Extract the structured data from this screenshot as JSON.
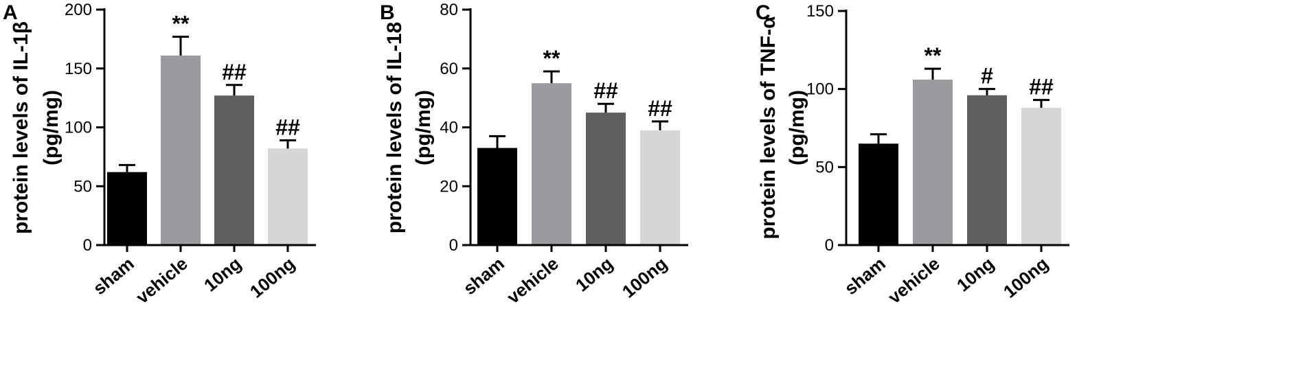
{
  "chart_data": [
    {
      "type": "bar",
      "panel": "A",
      "ylabel_lines": [
        "protein levels of IL-1β",
        "(pg/mg)"
      ],
      "categories": [
        "sham",
        "vehicle",
        "10ng",
        "100ng"
      ],
      "values": [
        62,
        161,
        127,
        82
      ],
      "errors": [
        6,
        16,
        9,
        7
      ],
      "annotations": [
        "",
        "**",
        "##",
        "##"
      ],
      "colors": [
        "#000000",
        "#9b9b9f",
        "#5e5f5f",
        "#d6d6d6"
      ],
      "ylim": [
        0,
        200
      ],
      "yticks": [
        0,
        50,
        100,
        150,
        200
      ]
    },
    {
      "type": "bar",
      "panel": "B",
      "ylabel_lines": [
        "protein levels of IL-18",
        "(pg/mg)"
      ],
      "categories": [
        "sham",
        "vehicle",
        "10ng",
        "100ng"
      ],
      "values": [
        33,
        55,
        45,
        39
      ],
      "errors": [
        4,
        4,
        3,
        3
      ],
      "annotations": [
        "",
        "**",
        "##",
        "##"
      ],
      "colors": [
        "#000000",
        "#9b9b9f",
        "#5e5f5f",
        "#d6d6d6"
      ],
      "ylim": [
        0,
        80
      ],
      "yticks": [
        0,
        20,
        40,
        60,
        80
      ]
    },
    {
      "type": "bar",
      "panel": "C",
      "ylabel_lines": [
        "protein levels of TNF-α",
        "(pg/mg)"
      ],
      "categories": [
        "sham",
        "vehicle",
        "10ng",
        "100ng"
      ],
      "values": [
        65,
        106,
        96,
        88
      ],
      "errors": [
        6,
        7,
        4,
        5
      ],
      "annotations": [
        "",
        "**",
        "#",
        "##"
      ],
      "colors": [
        "#000000",
        "#9b9b9f",
        "#5e5f5f",
        "#d6d6d6"
      ],
      "ylim": [
        0,
        150
      ],
      "yticks": [
        0,
        50,
        100,
        150
      ]
    }
  ]
}
